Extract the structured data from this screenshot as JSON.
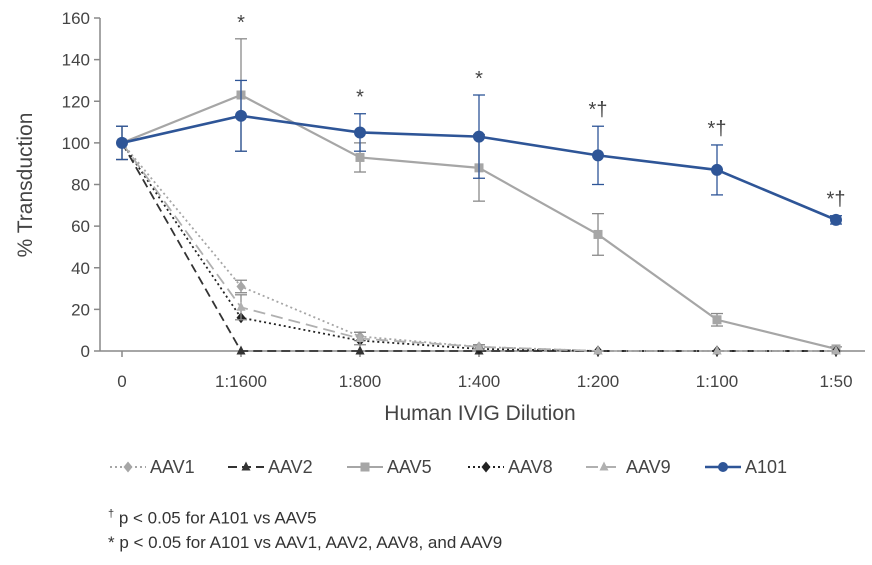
{
  "chart_data": {
    "type": "line",
    "xlabel": "Human IVIG Dilution",
    "ylabel": "% Transduction",
    "categories": [
      "0",
      "1:1600",
      "1:800",
      "1:400",
      "1:200",
      "1:100",
      "1:50"
    ],
    "ylim": [
      0,
      160
    ],
    "yticks": [
      0,
      20,
      40,
      60,
      80,
      100,
      120,
      140,
      160
    ],
    "grid": false,
    "legend_position": "bottom",
    "series": [
      {
        "name": "AAV1",
        "color": "#a6a6a6",
        "dash": "dotted",
        "marker": "diamond",
        "values": [
          100,
          31,
          7,
          2,
          0,
          0,
          0
        ],
        "errors": [
          8,
          3,
          2,
          1,
          0,
          0,
          0
        ]
      },
      {
        "name": "AAV2",
        "color": "#333333",
        "dash": "dashed",
        "marker": "triangle",
        "values": [
          100,
          0,
          0,
          0,
          0,
          0,
          0
        ],
        "errors": [
          0,
          0,
          0,
          0,
          0,
          0,
          0
        ]
      },
      {
        "name": "AAV5",
        "color": "#a6a6a6",
        "dash": "solid",
        "marker": "square",
        "values": [
          100,
          123,
          93,
          88,
          56,
          15,
          1
        ],
        "errors": [
          8,
          27,
          7,
          16,
          10,
          3,
          1
        ]
      },
      {
        "name": "AAV8",
        "color": "#222222",
        "dash": "dotted",
        "marker": "diamond",
        "values": [
          100,
          16,
          5,
          1,
          0,
          0,
          0
        ],
        "errors": [
          0,
          0,
          0,
          0,
          0,
          0,
          0
        ]
      },
      {
        "name": "AAV9",
        "color": "#b0b0b0",
        "dash": "longdash",
        "marker": "triangle",
        "values": [
          100,
          21,
          6,
          2,
          0,
          0,
          0
        ],
        "errors": [
          0,
          6,
          3,
          1,
          0,
          0,
          0
        ]
      },
      {
        "name": "A101",
        "color": "#2e5597",
        "dash": "solid",
        "marker": "circle",
        "values": [
          100,
          113,
          105,
          103,
          94,
          87,
          63
        ],
        "errors": [
          8,
          17,
          9,
          20,
          14,
          12,
          2
        ]
      }
    ],
    "annotations": [
      {
        "x": "1:1600",
        "text": "*"
      },
      {
        "x": "1:800",
        "text": "*"
      },
      {
        "x": "1:400",
        "text": "*"
      },
      {
        "x": "1:200",
        "text": "*†"
      },
      {
        "x": "1:100",
        "text": "*†"
      },
      {
        "x": "1:50",
        "text": "*†"
      }
    ]
  },
  "footnotes": {
    "dagger_symbol": "†",
    "dagger_text": " p < 0.05 for A101 vs AAV5",
    "star_text": "* p < 0.05 for A101 vs AAV1, AAV2, AAV8, and AAV9"
  }
}
